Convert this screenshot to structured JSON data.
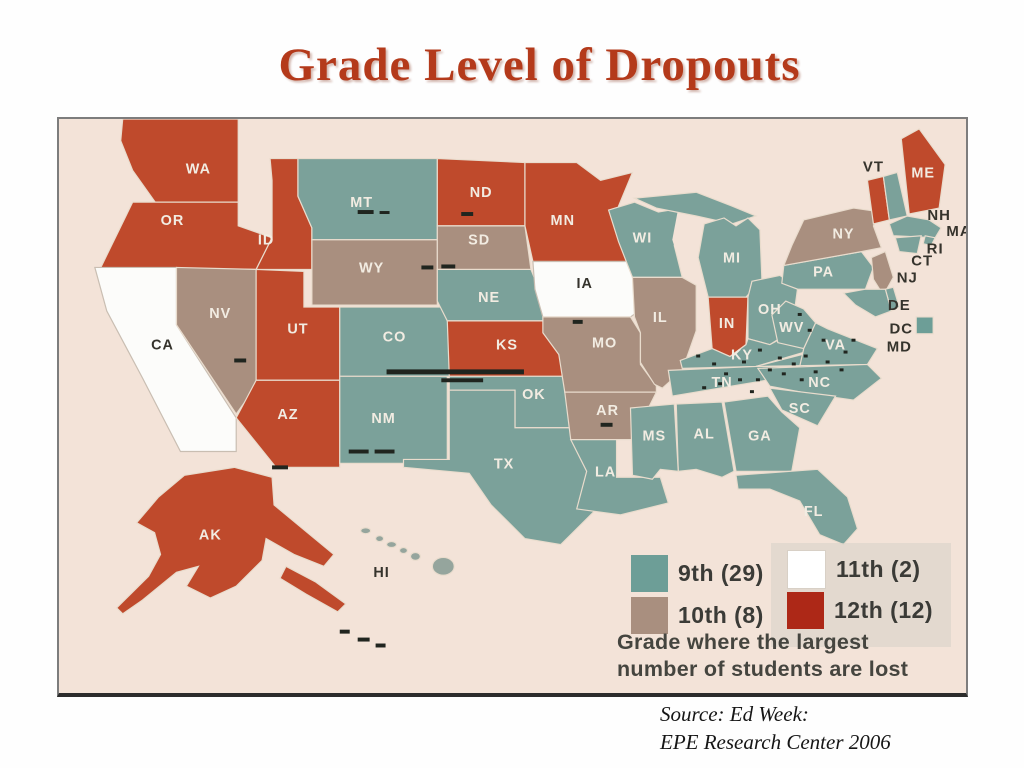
{
  "title": "Grade Level of Dropouts",
  "map": {
    "description": "U.S. choropleth map of grade level of dropouts",
    "grade_colors": {
      "9th": "#7ba19a",
      "10th": "#a98f7f",
      "11th": "#fcfcfa",
      "12th": "#bf4a2c"
    },
    "legend": {
      "entries": [
        {
          "id": "9th",
          "label": "9th (29)",
          "count": 29,
          "color": "#6d9e97"
        },
        {
          "id": "10th",
          "label": "10th (8)",
          "count": 8,
          "color": "#a98f7f"
        },
        {
          "id": "11th",
          "label": "11th (2)",
          "count": 2,
          "color": "#ffffff"
        },
        {
          "id": "12th",
          "label": "12th (12)",
          "count": 12,
          "color": "#ad2817"
        }
      ],
      "caption_line1": "Grade where the largest",
      "caption_line2": "number of students are lost"
    },
    "states": [
      {
        "abbr": "WA",
        "grade": "12th"
      },
      {
        "abbr": "OR",
        "grade": "12th"
      },
      {
        "abbr": "CA",
        "grade": "11th"
      },
      {
        "abbr": "ID",
        "grade": "12th"
      },
      {
        "abbr": "NV",
        "grade": "10th"
      },
      {
        "abbr": "UT",
        "grade": "12th"
      },
      {
        "abbr": "AZ",
        "grade": "12th"
      },
      {
        "abbr": "MT",
        "grade": "9th"
      },
      {
        "abbr": "WY",
        "grade": "10th"
      },
      {
        "abbr": "CO",
        "grade": "9th"
      },
      {
        "abbr": "NM",
        "grade": "9th"
      },
      {
        "abbr": "ND",
        "grade": "12th"
      },
      {
        "abbr": "SD",
        "grade": "10th"
      },
      {
        "abbr": "NE",
        "grade": "9th"
      },
      {
        "abbr": "KS",
        "grade": "12th"
      },
      {
        "abbr": "OK",
        "grade": "9th"
      },
      {
        "abbr": "TX",
        "grade": "9th"
      },
      {
        "abbr": "MN",
        "grade": "12th"
      },
      {
        "abbr": "IA",
        "grade": "11th"
      },
      {
        "abbr": "MO",
        "grade": "10th"
      },
      {
        "abbr": "AR",
        "grade": "10th"
      },
      {
        "abbr": "LA",
        "grade": "9th"
      },
      {
        "abbr": "WI",
        "grade": "9th"
      },
      {
        "abbr": "IL",
        "grade": "10th"
      },
      {
        "abbr": "MI",
        "grade": "9th"
      },
      {
        "abbr": "IN",
        "grade": "12th"
      },
      {
        "abbr": "OH",
        "grade": "9th"
      },
      {
        "abbr": "KY",
        "grade": "9th"
      },
      {
        "abbr": "TN",
        "grade": "9th"
      },
      {
        "abbr": "WV",
        "grade": "9th"
      },
      {
        "abbr": "VA",
        "grade": "9th"
      },
      {
        "abbr": "NC",
        "grade": "9th"
      },
      {
        "abbr": "SC",
        "grade": "9th"
      },
      {
        "abbr": "GA",
        "grade": "9th"
      },
      {
        "abbr": "AL",
        "grade": "9th"
      },
      {
        "abbr": "MS",
        "grade": "9th"
      },
      {
        "abbr": "FL",
        "grade": "9th"
      },
      {
        "abbr": "PA",
        "grade": "9th"
      },
      {
        "abbr": "NY",
        "grade": "10th"
      },
      {
        "abbr": "NJ",
        "grade": "10th"
      },
      {
        "abbr": "VT",
        "grade": "12th"
      },
      {
        "abbr": "NH",
        "grade": "9th"
      },
      {
        "abbr": "ME",
        "grade": "12th"
      },
      {
        "abbr": "MA",
        "grade": "9th"
      },
      {
        "abbr": "RI",
        "grade": "9th"
      },
      {
        "abbr": "CT",
        "grade": "9th"
      },
      {
        "abbr": "DE",
        "grade": "9th"
      },
      {
        "abbr": "MD",
        "grade": "9th"
      },
      {
        "abbr": "DC",
        "grade": "9th"
      },
      {
        "abbr": "AK",
        "grade": "12th"
      },
      {
        "abbr": "HI",
        "grade": "9th"
      }
    ]
  },
  "source": {
    "line1": "Source: Ed Week:",
    "line2": "EPE Research Center 2006"
  },
  "colors": {
    "title": "#b43a1b",
    "panel_background": "#f3e3d8",
    "label_light": "#f2ece2",
    "label_dark": "#35332c"
  }
}
